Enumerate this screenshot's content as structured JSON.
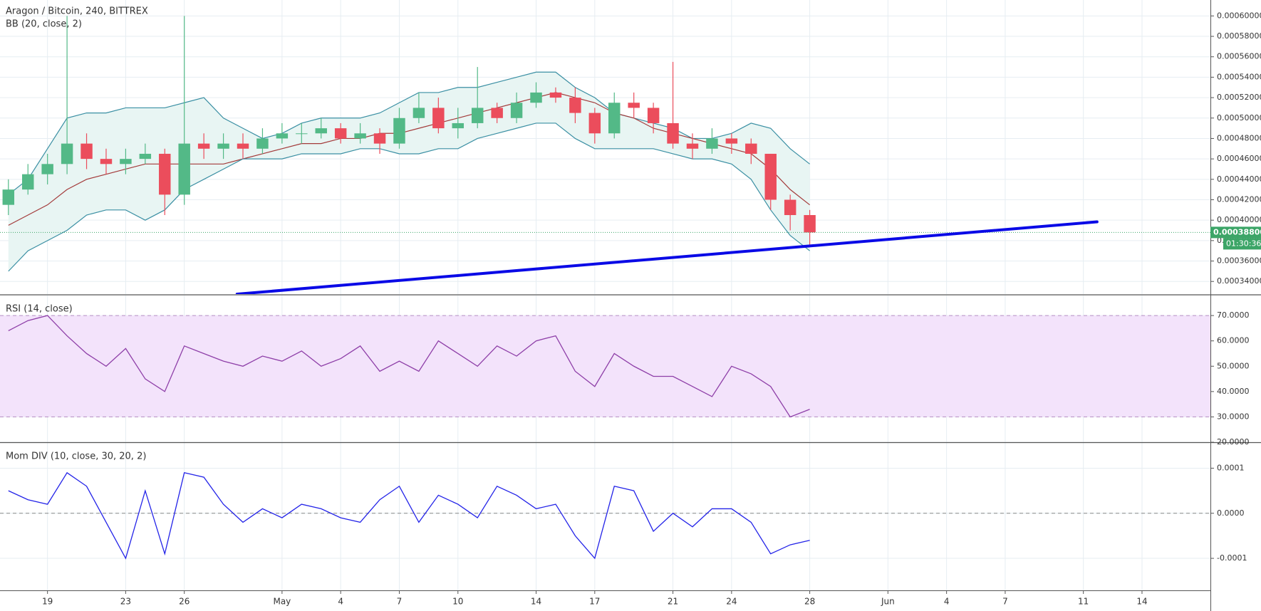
{
  "chart_data": [
    {
      "type": "candlestick",
      "title": "Aragon / Bitcoin, 240, BITTREX",
      "subtitle": "BB (20, close, 2)",
      "x": [
        17,
        18,
        19,
        20,
        21,
        22,
        23,
        24,
        25,
        26,
        27,
        28,
        29,
        30,
        31,
        32,
        33,
        34,
        35,
        36,
        37,
        38,
        39,
        40,
        41,
        42,
        43,
        44,
        45,
        46,
        47,
        48,
        49,
        50,
        51,
        52,
        53,
        54,
        55,
        56,
        57,
        58
      ],
      "open": [
        0.000415,
        0.00043,
        0.000445,
        0.000455,
        0.000475,
        0.00046,
        0.000455,
        0.00046,
        0.000465,
        0.000425,
        0.000475,
        0.00047,
        0.000475,
        0.00047,
        0.00048,
        0.000485,
        0.000485,
        0.00049,
        0.00048,
        0.000485,
        0.000475,
        0.0005,
        0.00051,
        0.00049,
        0.000495,
        0.00051,
        0.0005,
        0.000515,
        0.000525,
        0.00052,
        0.000505,
        0.000485,
        0.000515,
        0.00051,
        0.000495,
        0.000475,
        0.00047,
        0.00048,
        0.000475,
        0.000465,
        0.00042,
        0.000405
      ],
      "high": [
        0.00044,
        0.000455,
        0.000465,
        0.0006,
        0.000485,
        0.00047,
        0.00047,
        0.000475,
        0.00047,
        0.0006,
        0.000485,
        0.000485,
        0.000485,
        0.00049,
        0.000495,
        0.000495,
        0.0005,
        0.000495,
        0.000495,
        0.00049,
        0.00051,
        0.000525,
        0.00052,
        0.00051,
        0.00055,
        0.000515,
        0.000525,
        0.000535,
        0.00053,
        0.00053,
        0.00051,
        0.000525,
        0.000525,
        0.000515,
        0.000555,
        0.000485,
        0.00049,
        0.000485,
        0.00048,
        0.000465,
        0.000425,
        0.00041
      ],
      "low": [
        0.000405,
        0.000425,
        0.000435,
        0.000445,
        0.00045,
        0.000445,
        0.000445,
        0.000455,
        0.000405,
        0.000415,
        0.00046,
        0.00046,
        0.00046,
        0.000465,
        0.000475,
        0.000475,
        0.00048,
        0.000475,
        0.000475,
        0.000465,
        0.00047,
        0.000495,
        0.000485,
        0.00048,
        0.00049,
        0.000495,
        0.000495,
        0.00051,
        0.000515,
        0.000495,
        0.000475,
        0.00048,
        0.0005,
        0.000485,
        0.00047,
        0.00046,
        0.000465,
        0.000465,
        0.000455,
        0.00041,
        0.00039,
        0.000375
      ],
      "close": [
        0.00043,
        0.000445,
        0.000455,
        0.000475,
        0.00046,
        0.000455,
        0.00046,
        0.000465,
        0.000425,
        0.000475,
        0.00047,
        0.000475,
        0.00047,
        0.00048,
        0.000485,
        0.000485,
        0.00049,
        0.00048,
        0.000485,
        0.000475,
        0.0005,
        0.00051,
        0.00049,
        0.000495,
        0.00051,
        0.0005,
        0.000515,
        0.000525,
        0.00052,
        0.000505,
        0.000485,
        0.000515,
        0.00051,
        0.000495,
        0.000475,
        0.00047,
        0.00048,
        0.000475,
        0.000465,
        0.00042,
        0.000405,
        0.000388
      ],
      "colors": {
        "up": "#53b987",
        "down": "#eb4d5c"
      },
      "bands": {
        "upper": [
          0.000425,
          0.00044,
          0.00047,
          0.0005,
          0.000505,
          0.000505,
          0.00051,
          0.00051,
          0.00051,
          0.000515,
          0.00052,
          0.0005,
          0.00049,
          0.00048,
          0.000485,
          0.000495,
          0.0005,
          0.0005,
          0.0005,
          0.000505,
          0.000515,
          0.000525,
          0.000525,
          0.00053,
          0.00053,
          0.000535,
          0.00054,
          0.000545,
          0.000545,
          0.00053,
          0.00052,
          0.000505,
          0.0005,
          0.000495,
          0.00049,
          0.00048,
          0.00048,
          0.000485,
          0.000495,
          0.00049,
          0.00047,
          0.000455
        ],
        "middle": [
          0.000395,
          0.000405,
          0.000415,
          0.00043,
          0.00044,
          0.000445,
          0.00045,
          0.000455,
          0.000455,
          0.000455,
          0.000455,
          0.000455,
          0.00046,
          0.000465,
          0.00047,
          0.000475,
          0.000475,
          0.00048,
          0.00048,
          0.000485,
          0.000485,
          0.00049,
          0.000495,
          0.0005,
          0.000505,
          0.00051,
          0.000515,
          0.00052,
          0.000525,
          0.00052,
          0.000515,
          0.000505,
          0.0005,
          0.00049,
          0.000485,
          0.00048,
          0.000475,
          0.00047,
          0.000465,
          0.00045,
          0.00043,
          0.000415
        ],
        "lower": [
          0.00035,
          0.00037,
          0.00038,
          0.00039,
          0.000405,
          0.00041,
          0.00041,
          0.0004,
          0.00041,
          0.00043,
          0.00044,
          0.00045,
          0.00046,
          0.00046,
          0.00046,
          0.000465,
          0.000465,
          0.000465,
          0.00047,
          0.00047,
          0.000465,
          0.000465,
          0.00047,
          0.00047,
          0.00048,
          0.000485,
          0.00049,
          0.000495,
          0.000495,
          0.00048,
          0.00047,
          0.00047,
          0.00047,
          0.00047,
          0.000465,
          0.00046,
          0.00046,
          0.000455,
          0.00044,
          0.00041,
          0.000385,
          0.00037
        ],
        "color": "#3a8fa3",
        "middle_color": "#a33a3a",
        "fill": "#e8f5f3"
      },
      "last_price": {
        "value": 0.000388,
        "label": "0.00038800",
        "color": "#3ca567"
      },
      "countdown": "01:30:36",
      "trend_line": {
        "x": [
          28.7,
          72.7
        ],
        "y": [
          0.0003276,
          0.0003984
        ],
        "color": "#0a0ae6"
      },
      "xlim": [
        16.57,
        78.5
      ],
      "ylim": [
        0.0003276,
        0.0006156
      ],
      "yticks": [
        {
          "value": 0.00034,
          "label": "0.00034000"
        },
        {
          "value": 0.00036,
          "label": "0.00036000"
        },
        {
          "value": 0.00038,
          "label": "0.00038000"
        },
        {
          "value": 0.0004,
          "label": "0.00040000"
        },
        {
          "value": 0.00042,
          "label": "0.00042000"
        },
        {
          "value": 0.00044,
          "label": "0.00044000"
        },
        {
          "value": 0.00046,
          "label": "0.00046000"
        },
        {
          "value": 0.00048,
          "label": "0.00048000"
        },
        {
          "value": 0.0005,
          "label": "0.00050000"
        },
        {
          "value": 0.00052,
          "label": "0.00052000"
        },
        {
          "value": 0.00054,
          "label": "0.00054000"
        },
        {
          "value": 0.00056,
          "label": "0.00056000"
        },
        {
          "value": 0.00058,
          "label": "0.00058000"
        },
        {
          "value": 0.0006,
          "label": "0.00060000"
        }
      ],
      "grid": true
    },
    {
      "type": "line",
      "title": "RSI (14, close)",
      "x": [
        17,
        18,
        19,
        20,
        21,
        22,
        23,
        24,
        25,
        26,
        27,
        28,
        29,
        30,
        31,
        32,
        33,
        34,
        35,
        36,
        37,
        38,
        39,
        40,
        41,
        42,
        43,
        44,
        45,
        46,
        47,
        48,
        49,
        50,
        51,
        52,
        53,
        54,
        55,
        56,
        57,
        58
      ],
      "values": [
        64,
        68,
        70,
        62,
        55,
        50,
        57,
        45,
        40,
        58,
        55,
        52,
        50,
        54,
        52,
        56,
        50,
        53,
        58,
        48,
        52,
        48,
        60,
        55,
        50,
        58,
        54,
        60,
        62,
        48,
        42,
        55,
        50,
        46,
        46,
        42,
        38,
        50,
        47,
        42,
        30,
        33
      ],
      "color": "#8e3fa8",
      "band": [
        30,
        70
      ],
      "band_color": "#f3e3fb",
      "xlim": [
        16.57,
        78.5
      ],
      "ylim": [
        20,
        77.9
      ],
      "yticks": [
        {
          "value": 20,
          "label": "20.0000"
        },
        {
          "value": 30,
          "label": "30.0000"
        },
        {
          "value": 40,
          "label": "40.0000"
        },
        {
          "value": 50,
          "label": "50.0000"
        },
        {
          "value": 60,
          "label": "60.0000"
        },
        {
          "value": 70,
          "label": "70.0000"
        }
      ],
      "grid": true
    },
    {
      "type": "line",
      "title": "Mom DIV (10, close, 30, 20, 2)",
      "x": [
        17,
        18,
        19,
        20,
        21,
        22,
        23,
        24,
        25,
        26,
        27,
        28,
        29,
        30,
        31,
        32,
        33,
        34,
        35,
        36,
        37,
        38,
        39,
        40,
        41,
        42,
        43,
        44,
        45,
        46,
        47,
        48,
        49,
        50,
        51,
        52,
        53,
        54,
        55,
        56,
        57,
        58
      ],
      "values": [
        5e-05,
        3e-05,
        2e-05,
        9e-05,
        6e-05,
        -2e-05,
        -0.0001,
        5e-05,
        -9e-05,
        9e-05,
        8e-05,
        2e-05,
        -2e-05,
        1e-05,
        -1e-05,
        2e-05,
        1e-05,
        -1e-05,
        -2e-05,
        3e-05,
        6e-05,
        -2e-05,
        4e-05,
        2e-05,
        -1e-05,
        6e-05,
        4e-05,
        1e-05,
        2e-05,
        -5e-05,
        -0.0001,
        6e-05,
        5e-05,
        -4e-05,
        0,
        -3e-05,
        1e-05,
        1e-05,
        -2e-05,
        -9e-05,
        -7e-05,
        -6e-05
      ],
      "color": "#2323e8",
      "zero_line": true,
      "xlim": [
        16.57,
        78.5
      ],
      "ylim": [
        -0.000171,
        0.000156
      ],
      "yticks": [
        0.0001,
        {
          "value": 0,
          "label": "0.0000"
        },
        -0.0001
      ],
      "xticks": [
        19,
        23,
        26,
        {
          "value": 31,
          "label": "May"
        },
        {
          "value": 34,
          "label": "4"
        },
        {
          "value": 37,
          "label": "7"
        },
        {
          "value": 40,
          "label": "10"
        },
        {
          "value": 44,
          "label": "14"
        },
        {
          "value": 47,
          "label": "17"
        },
        {
          "value": 51,
          "label": "21"
        },
        {
          "value": 54,
          "label": "24"
        },
        {
          "value": 58,
          "label": "28"
        },
        {
          "value": 62,
          "label": "Jun"
        },
        {
          "value": 65,
          "label": "4"
        },
        {
          "value": 68,
          "label": "7"
        },
        {
          "value": 72,
          "label": "11"
        },
        {
          "value": 75,
          "label": "14"
        }
      ],
      "grid": true
    }
  ]
}
